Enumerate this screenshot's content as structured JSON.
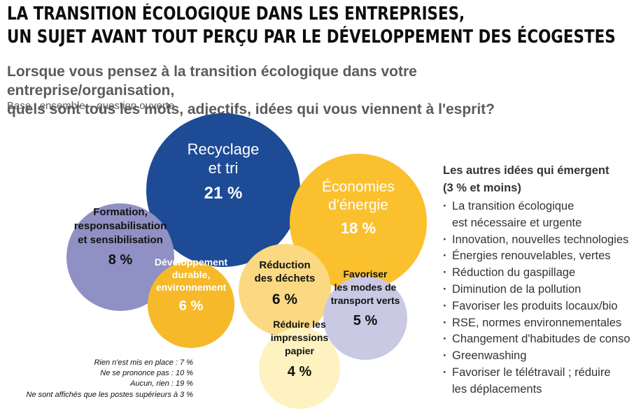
{
  "title": {
    "line1": "LA TRANSITION ÉCOLOGIQUE DANS LES ENTREPRISES,",
    "line2": "UN SUJET AVANT TOUT PERÇU PAR LE DÉVELOPPEMENT DES ÉCOGESTES"
  },
  "question": {
    "line1": "Lorsque vous pensez à la transition écologique dans votre entreprise/organisation,",
    "line2": "quels sont tous les mots, adjectifs, idées qui vous viennent à l'esprit?"
  },
  "base": "Base : ensemble – question ouverte",
  "chart_data": {
    "type": "bubble",
    "unit": "%",
    "items": [
      {
        "label_lines": [
          "Recyclage",
          "et tri"
        ],
        "value": 21,
        "value_label": "21 %",
        "color": "#1e4b96",
        "text_color": "#ffffff"
      },
      {
        "label_lines": [
          "Économies",
          "d'énergie"
        ],
        "value": 18,
        "value_label": "18 %",
        "color": "#fbc02d",
        "text_color": "#ffffff"
      },
      {
        "label_lines": [
          "Formation,",
          "responsabilisation",
          "et sensibilisation"
        ],
        "value": 8,
        "value_label": "8 %",
        "color": "#8f90c4",
        "text_color": "#111111"
      },
      {
        "label_lines": [
          "Développement",
          "durable,",
          "environnement"
        ],
        "value": 6,
        "value_label": "6 %",
        "color": "#f5b92a",
        "text_color": "#ffffff"
      },
      {
        "label_lines": [
          "Réduction",
          "des déchets"
        ],
        "value": 6,
        "value_label": "6 %",
        "color": "#fbd983",
        "text_color": "#111111"
      },
      {
        "label_lines": [
          "Favoriser",
          "les modes de",
          "transport verts"
        ],
        "value": 5,
        "value_label": "5 %",
        "color": "#c9c9e4",
        "text_color": "#111111"
      },
      {
        "label_lines": [
          "Réduire les",
          "impressions",
          "papier"
        ],
        "value": 4,
        "value_label": "4 %",
        "color": "#fdf2c0",
        "text_color": "#111111"
      }
    ]
  },
  "others": {
    "title_line1": "Les autres idées qui émergent",
    "title_line2": "(3 % et moins)",
    "items": [
      [
        "La transition écologique",
        "est nécessaire et urgente"
      ],
      [
        "Innovation, nouvelles technologies"
      ],
      [
        "Énergies renouvelables, vertes"
      ],
      [
        "Réduction du gaspillage"
      ],
      [
        "Diminution de la pollution"
      ],
      [
        "Favoriser les produits locaux/bio"
      ],
      [
        "RSE, normes environnementales"
      ],
      [
        "Changement d'habitudes de conso"
      ],
      [
        "Greenwashing"
      ],
      [
        "Favoriser le télétravail ; réduire",
        "les déplacements"
      ]
    ]
  },
  "footnotes": [
    "Rien n'est mis en place : 7 %",
    "Ne se prononce pas : 10 %",
    "Aucun, rien : 19 %",
    "Ne sont affichés que les postes supérieurs à 3 %"
  ]
}
